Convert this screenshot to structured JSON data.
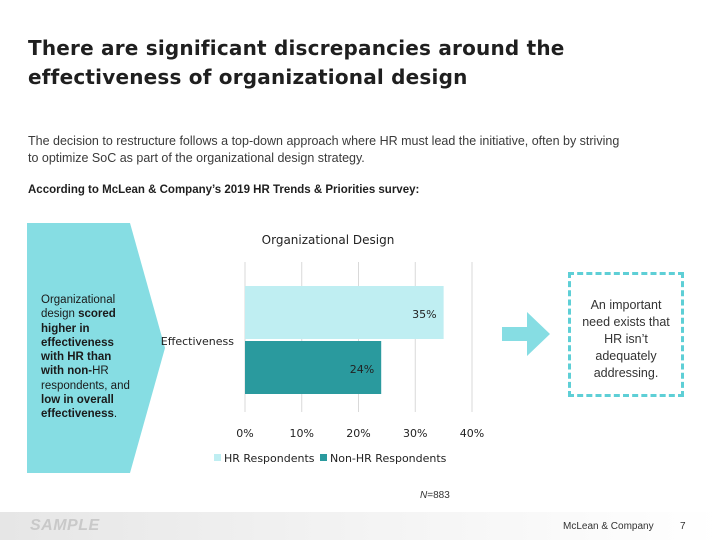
{
  "slide": {
    "title_line1": "There are significant discrepancies around the",
    "title_line2": "effectiveness of organizational design",
    "intro_line1": "The decision to restructure follows a top-down approach where HR must lead the initiative, often by striving",
    "intro_line2": "to optimize SoC as part of the organizational design strategy.",
    "survey_label": "According to McLean & Company’s 2019 HR Trends & Priorities survey:"
  },
  "callout": {
    "line1": "Organizational",
    "line2a": "design ",
    "line2b": "scored",
    "line3": "higher in",
    "line4": "effectiveness",
    "line5": "with HR than",
    "line6a": "with non-",
    "line6b": "HR",
    "line7": "respondents, and",
    "line8": "low in overall",
    "line9": "effectiveness",
    "line9_end": ".",
    "color": "#86dde3"
  },
  "chart_data": {
    "type": "bar",
    "orientation": "horizontal",
    "title": "Organizational Design",
    "categories": [
      "Effectiveness"
    ],
    "series": [
      {
        "name": "HR Respondents",
        "values": [
          35
        ],
        "color": "#bfeef2",
        "label": "35%"
      },
      {
        "name": "Non-HR Respondents",
        "values": [
          24
        ],
        "color": "#2a9a9e",
        "label": "24%"
      }
    ],
    "xlim": [
      0,
      40
    ],
    "xticks": [
      "0%",
      "10%",
      "20%",
      "30%",
      "40%"
    ],
    "xtick_values": [
      0,
      10,
      20,
      30,
      40
    ],
    "grid": true,
    "legend": "bottom"
  },
  "note": {
    "text": "An important need exists that HR isn’t adequately addressing.",
    "line1": "An important",
    "line2": "need exists that",
    "line3": "HR isn’t",
    "line4": "adequately",
    "line5": "addressing.",
    "border_color": "#5ecfd6",
    "arrow_color": "#86dde3"
  },
  "sample_n": {
    "prefix": "N",
    "value": "=883"
  },
  "footer": {
    "sample": "SAMPLE",
    "company": "McLean & Company",
    "page": "7"
  }
}
